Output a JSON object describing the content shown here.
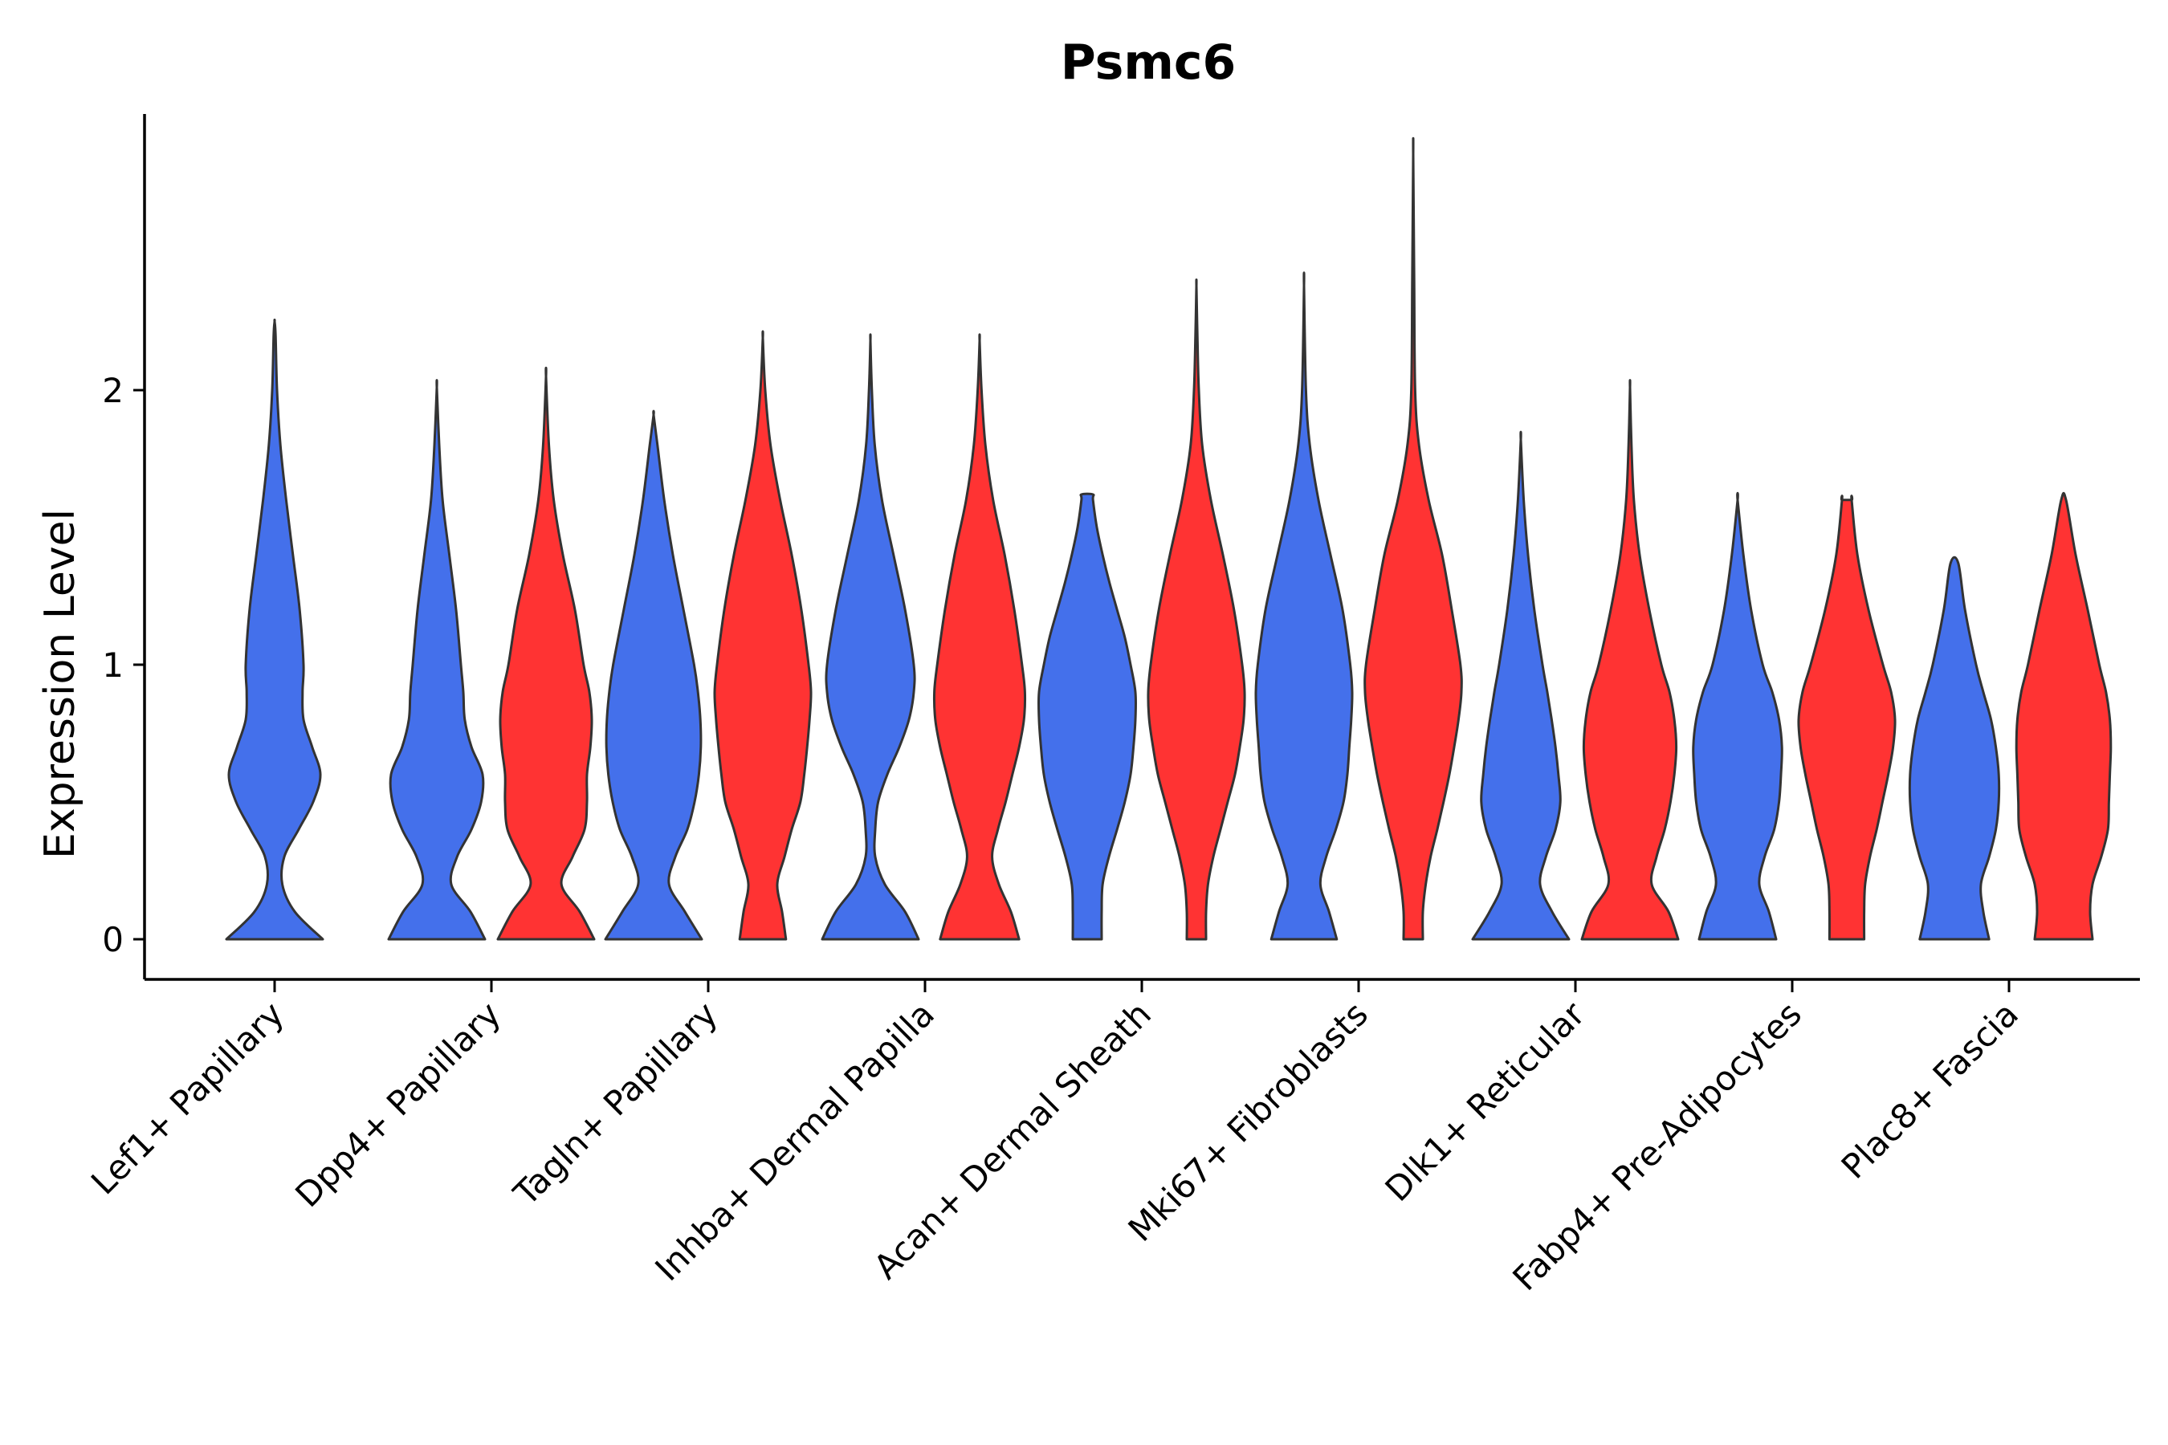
{
  "chart_data": {
    "type": "violin",
    "title": "Psmc6",
    "xlabel": "",
    "ylabel": "Expression Level",
    "yticks": [
      "0",
      "1",
      "2"
    ],
    "ylim": [
      -0.14,
      3.0
    ],
    "grid": false,
    "legend": "none",
    "categories": [
      "Lef1+ Papillary",
      "Dpp4+ Papillary",
      "Tagln+ Papillary",
      "Inhba+ Dermal Papilla",
      "Acan+ Dermal Sheath",
      "Mki67+ Fibroblasts",
      "Dlk1+ Reticular",
      "Fabp4+ Pre-Adipocytes",
      "Plac8+ Fascia"
    ],
    "series": [
      {
        "color": "#4470EB"
      },
      {
        "color": "#FF3333"
      }
    ],
    "violins": [
      {
        "category": 0,
        "group": 0,
        "y_min": 0,
        "y_max": 2.25,
        "profile": [
          [
            0,
            1.0
          ],
          [
            0.1,
            0.42
          ],
          [
            0.2,
            0.16
          ],
          [
            0.3,
            0.2
          ],
          [
            0.4,
            0.5
          ],
          [
            0.5,
            0.8
          ],
          [
            0.6,
            0.95
          ],
          [
            0.7,
            0.78
          ],
          [
            0.8,
            0.6
          ],
          [
            0.9,
            0.58
          ],
          [
            1.0,
            0.6
          ],
          [
            1.2,
            0.52
          ],
          [
            1.4,
            0.38
          ],
          [
            1.6,
            0.24
          ],
          [
            1.8,
            0.12
          ],
          [
            2.0,
            0.05
          ],
          [
            2.2,
            0.02
          ],
          [
            2.25,
            0.0
          ]
        ]
      },
      {
        "category": 1,
        "group": 0,
        "y_min": 0,
        "y_max": 2.01,
        "profile": [
          [
            0,
            1.0
          ],
          [
            0.1,
            0.7
          ],
          [
            0.2,
            0.3
          ],
          [
            0.3,
            0.42
          ],
          [
            0.4,
            0.72
          ],
          [
            0.5,
            0.92
          ],
          [
            0.6,
            0.95
          ],
          [
            0.7,
            0.72
          ],
          [
            0.8,
            0.58
          ],
          [
            0.9,
            0.55
          ],
          [
            1.0,
            0.5
          ],
          [
            1.2,
            0.4
          ],
          [
            1.4,
            0.26
          ],
          [
            1.6,
            0.12
          ],
          [
            1.8,
            0.05
          ],
          [
            2.01,
            0.0
          ]
        ]
      },
      {
        "category": 1,
        "group": 1,
        "y_min": 0,
        "y_max": 2.05,
        "profile": [
          [
            0,
            1.0
          ],
          [
            0.1,
            0.7
          ],
          [
            0.2,
            0.32
          ],
          [
            0.3,
            0.55
          ],
          [
            0.4,
            0.8
          ],
          [
            0.5,
            0.85
          ],
          [
            0.6,
            0.85
          ],
          [
            0.7,
            0.92
          ],
          [
            0.8,
            0.95
          ],
          [
            0.9,
            0.9
          ],
          [
            1.0,
            0.78
          ],
          [
            1.2,
            0.6
          ],
          [
            1.4,
            0.35
          ],
          [
            1.6,
            0.16
          ],
          [
            1.8,
            0.06
          ],
          [
            2.05,
            0.0
          ]
        ]
      },
      {
        "category": 2,
        "group": 0,
        "y_min": 0,
        "y_max": 1.91,
        "profile": [
          [
            0,
            1.0
          ],
          [
            0.1,
            0.65
          ],
          [
            0.2,
            0.32
          ],
          [
            0.3,
            0.45
          ],
          [
            0.4,
            0.7
          ],
          [
            0.5,
            0.85
          ],
          [
            0.6,
            0.94
          ],
          [
            0.7,
            0.98
          ],
          [
            0.8,
            0.97
          ],
          [
            0.9,
            0.92
          ],
          [
            1.0,
            0.84
          ],
          [
            1.2,
            0.62
          ],
          [
            1.4,
            0.4
          ],
          [
            1.6,
            0.22
          ],
          [
            1.8,
            0.08
          ],
          [
            1.91,
            0.0
          ]
        ]
      },
      {
        "category": 2,
        "group": 1,
        "y_min": 0,
        "y_max": 2.19,
        "profile": [
          [
            0,
            0.48
          ],
          [
            0.1,
            0.4
          ],
          [
            0.2,
            0.3
          ],
          [
            0.3,
            0.45
          ],
          [
            0.4,
            0.6
          ],
          [
            0.5,
            0.78
          ],
          [
            0.6,
            0.86
          ],
          [
            0.7,
            0.92
          ],
          [
            0.8,
            0.97
          ],
          [
            0.9,
            1.0
          ],
          [
            1.0,
            0.95
          ],
          [
            1.2,
            0.8
          ],
          [
            1.4,
            0.6
          ],
          [
            1.6,
            0.36
          ],
          [
            1.8,
            0.16
          ],
          [
            2.0,
            0.05
          ],
          [
            2.19,
            0.0
          ]
        ]
      },
      {
        "category": 3,
        "group": 0,
        "y_min": 0,
        "y_max": 2.18,
        "profile": [
          [
            0,
            1.0
          ],
          [
            0.1,
            0.72
          ],
          [
            0.2,
            0.3
          ],
          [
            0.3,
            0.1
          ],
          [
            0.4,
            0.1
          ],
          [
            0.5,
            0.16
          ],
          [
            0.6,
            0.35
          ],
          [
            0.7,
            0.6
          ],
          [
            0.8,
            0.8
          ],
          [
            0.9,
            0.9
          ],
          [
            1.0,
            0.9
          ],
          [
            1.2,
            0.72
          ],
          [
            1.4,
            0.48
          ],
          [
            1.6,
            0.24
          ],
          [
            1.8,
            0.09
          ],
          [
            2.0,
            0.03
          ],
          [
            2.18,
            0.0
          ]
        ]
      },
      {
        "category": 3,
        "group": 1,
        "y_min": 0,
        "y_max": 2.18,
        "profile": [
          [
            0,
            0.82
          ],
          [
            0.1,
            0.65
          ],
          [
            0.2,
            0.4
          ],
          [
            0.3,
            0.26
          ],
          [
            0.4,
            0.38
          ],
          [
            0.5,
            0.54
          ],
          [
            0.6,
            0.68
          ],
          [
            0.7,
            0.82
          ],
          [
            0.8,
            0.92
          ],
          [
            0.9,
            0.94
          ],
          [
            1.0,
            0.88
          ],
          [
            1.2,
            0.72
          ],
          [
            1.4,
            0.52
          ],
          [
            1.6,
            0.28
          ],
          [
            1.8,
            0.12
          ],
          [
            2.0,
            0.04
          ],
          [
            2.18,
            0.0
          ]
        ]
      },
      {
        "category": 4,
        "group": 0,
        "y_min": 0,
        "y_max": 1.62,
        "profile": [
          [
            0,
            0.3
          ],
          [
            0.1,
            0.3
          ],
          [
            0.2,
            0.32
          ],
          [
            0.3,
            0.45
          ],
          [
            0.4,
            0.62
          ],
          [
            0.5,
            0.78
          ],
          [
            0.6,
            0.9
          ],
          [
            0.7,
            0.96
          ],
          [
            0.8,
            1.0
          ],
          [
            0.9,
            1.0
          ],
          [
            1.0,
            0.9
          ],
          [
            1.1,
            0.78
          ],
          [
            1.2,
            0.62
          ],
          [
            1.3,
            0.46
          ],
          [
            1.4,
            0.32
          ],
          [
            1.5,
            0.2
          ],
          [
            1.6,
            0.12
          ],
          [
            1.62,
            0.12
          ]
        ]
      },
      {
        "category": 4,
        "group": 1,
        "y_min": 0,
        "y_max": 2.38,
        "profile": [
          [
            0,
            0.2
          ],
          [
            0.1,
            0.2
          ],
          [
            0.2,
            0.24
          ],
          [
            0.3,
            0.35
          ],
          [
            0.4,
            0.5
          ],
          [
            0.5,
            0.65
          ],
          [
            0.6,
            0.8
          ],
          [
            0.7,
            0.9
          ],
          [
            0.8,
            0.98
          ],
          [
            0.9,
            1.0
          ],
          [
            1.0,
            0.95
          ],
          [
            1.2,
            0.78
          ],
          [
            1.4,
            0.55
          ],
          [
            1.6,
            0.3
          ],
          [
            1.8,
            0.12
          ],
          [
            2.0,
            0.05
          ],
          [
            2.2,
            0.02
          ],
          [
            2.38,
            0.0
          ]
        ]
      },
      {
        "category": 5,
        "group": 0,
        "y_min": 0,
        "y_max": 2.38,
        "profile": [
          [
            0,
            0.68
          ],
          [
            0.1,
            0.52
          ],
          [
            0.2,
            0.34
          ],
          [
            0.3,
            0.46
          ],
          [
            0.4,
            0.66
          ],
          [
            0.5,
            0.82
          ],
          [
            0.6,
            0.9
          ],
          [
            0.7,
            0.94
          ],
          [
            0.8,
            0.98
          ],
          [
            0.9,
            1.0
          ],
          [
            1.0,
            0.96
          ],
          [
            1.2,
            0.8
          ],
          [
            1.4,
            0.55
          ],
          [
            1.6,
            0.3
          ],
          [
            1.8,
            0.12
          ],
          [
            2.0,
            0.04
          ],
          [
            2.38,
            0.0
          ]
        ]
      },
      {
        "category": 5,
        "group": 1,
        "y_min": 0,
        "y_max": 2.86,
        "profile": [
          [
            0,
            0.2
          ],
          [
            0.1,
            0.2
          ],
          [
            0.2,
            0.26
          ],
          [
            0.3,
            0.36
          ],
          [
            0.4,
            0.5
          ],
          [
            0.5,
            0.63
          ],
          [
            0.6,
            0.75
          ],
          [
            0.7,
            0.85
          ],
          [
            0.8,
            0.94
          ],
          [
            0.9,
            1.0
          ],
          [
            1.0,
            0.98
          ],
          [
            1.2,
            0.8
          ],
          [
            1.4,
            0.6
          ],
          [
            1.6,
            0.32
          ],
          [
            1.8,
            0.12
          ],
          [
            2.0,
            0.04
          ],
          [
            2.4,
            0.02
          ],
          [
            2.86,
            0.0
          ]
        ]
      },
      {
        "category": 6,
        "group": 0,
        "y_min": 0,
        "y_max": 1.82,
        "profile": [
          [
            0,
            1.0
          ],
          [
            0.1,
            0.65
          ],
          [
            0.2,
            0.4
          ],
          [
            0.3,
            0.52
          ],
          [
            0.4,
            0.72
          ],
          [
            0.5,
            0.82
          ],
          [
            0.6,
            0.78
          ],
          [
            0.7,
            0.72
          ],
          [
            0.8,
            0.64
          ],
          [
            0.9,
            0.55
          ],
          [
            1.0,
            0.45
          ],
          [
            1.2,
            0.28
          ],
          [
            1.4,
            0.15
          ],
          [
            1.6,
            0.06
          ],
          [
            1.82,
            0.0
          ]
        ]
      },
      {
        "category": 6,
        "group": 1,
        "y_min": 0,
        "y_max": 2.01,
        "profile": [
          [
            0,
            1.0
          ],
          [
            0.1,
            0.8
          ],
          [
            0.2,
            0.45
          ],
          [
            0.3,
            0.55
          ],
          [
            0.4,
            0.72
          ],
          [
            0.5,
            0.84
          ],
          [
            0.6,
            0.92
          ],
          [
            0.7,
            0.96
          ],
          [
            0.8,
            0.92
          ],
          [
            0.9,
            0.82
          ],
          [
            1.0,
            0.65
          ],
          [
            1.2,
            0.4
          ],
          [
            1.4,
            0.2
          ],
          [
            1.6,
            0.08
          ],
          [
            1.8,
            0.03
          ],
          [
            2.01,
            0.0
          ]
        ]
      },
      {
        "category": 7,
        "group": 0,
        "y_min": 0,
        "y_max": 1.6,
        "profile": [
          [
            0,
            0.8
          ],
          [
            0.1,
            0.65
          ],
          [
            0.2,
            0.45
          ],
          [
            0.3,
            0.56
          ],
          [
            0.4,
            0.76
          ],
          [
            0.5,
            0.86
          ],
          [
            0.6,
            0.9
          ],
          [
            0.7,
            0.92
          ],
          [
            0.8,
            0.86
          ],
          [
            0.9,
            0.72
          ],
          [
            1.0,
            0.52
          ],
          [
            1.2,
            0.28
          ],
          [
            1.4,
            0.12
          ],
          [
            1.6,
            0.0
          ]
        ]
      },
      {
        "category": 7,
        "group": 1,
        "y_min": 0,
        "y_max": 1.6,
        "profile": [
          [
            0,
            0.36
          ],
          [
            0.1,
            0.36
          ],
          [
            0.2,
            0.38
          ],
          [
            0.3,
            0.48
          ],
          [
            0.4,
            0.62
          ],
          [
            0.5,
            0.74
          ],
          [
            0.6,
            0.86
          ],
          [
            0.7,
            0.96
          ],
          [
            0.8,
            1.0
          ],
          [
            0.9,
            0.92
          ],
          [
            1.0,
            0.75
          ],
          [
            1.2,
            0.45
          ],
          [
            1.4,
            0.22
          ],
          [
            1.6,
            0.1
          ],
          [
            1.6,
            0.1
          ]
        ]
      },
      {
        "category": 8,
        "group": 0,
        "y_min": 0,
        "y_max": 1.37,
        "profile": [
          [
            0,
            0.72
          ],
          [
            0.1,
            0.6
          ],
          [
            0.2,
            0.55
          ],
          [
            0.3,
            0.72
          ],
          [
            0.4,
            0.86
          ],
          [
            0.5,
            0.92
          ],
          [
            0.6,
            0.92
          ],
          [
            0.7,
            0.86
          ],
          [
            0.8,
            0.76
          ],
          [
            0.9,
            0.6
          ],
          [
            1.0,
            0.45
          ],
          [
            1.2,
            0.22
          ],
          [
            1.37,
            0.08
          ]
        ]
      },
      {
        "category": 8,
        "group": 1,
        "y_min": 0,
        "y_max": 1.6,
        "profile": [
          [
            0,
            0.6
          ],
          [
            0.1,
            0.55
          ],
          [
            0.2,
            0.6
          ],
          [
            0.3,
            0.78
          ],
          [
            0.4,
            0.92
          ],
          [
            0.5,
            0.94
          ],
          [
            0.6,
            0.96
          ],
          [
            0.7,
            0.98
          ],
          [
            0.8,
            0.96
          ],
          [
            0.9,
            0.88
          ],
          [
            1.0,
            0.74
          ],
          [
            1.2,
            0.5
          ],
          [
            1.4,
            0.25
          ],
          [
            1.6,
            0.05
          ]
        ]
      }
    ]
  }
}
